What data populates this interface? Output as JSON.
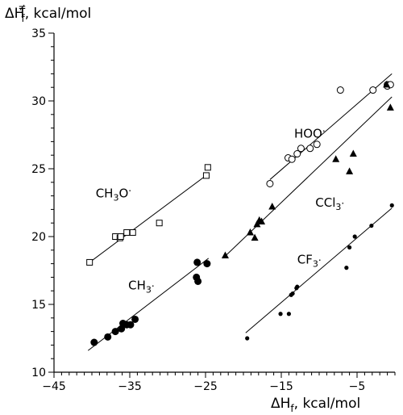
{
  "chart_data": {
    "type": "scatter",
    "title": "",
    "xlabel": {
      "main": "ΔH",
      "sub": "f",
      "unit": ", kcal/mol"
    },
    "ylabel": {
      "main": "ΔH",
      "sup": "≠",
      "sub": "f",
      "unit": ", kcal/mol"
    },
    "xlim": [
      -45,
      0
    ],
    "ylim": [
      10,
      35
    ],
    "xticks": [
      -45,
      -35,
      -25,
      -15,
      -5
    ],
    "yticks": [
      10,
      15,
      20,
      25,
      30,
      35
    ],
    "grid": false,
    "legend": "none",
    "series": [
      {
        "label": {
          "text": "CH3O·",
          "main": "CH",
          "sub": "3",
          "tail": "O",
          "dot": "·"
        },
        "label_at": [
          -39.5,
          22.9
        ],
        "marker": "open-square",
        "x": [
          -40.3,
          -36.9,
          -36.3,
          -36.2,
          -35.4,
          -34.6,
          -31.1,
          -24.9,
          -24.7
        ],
        "y": [
          18.1,
          20.0,
          19.9,
          20.0,
          20.3,
          20.3,
          21.0,
          24.5,
          25.1
        ],
        "fit": [
          [
            -40.3,
            18.1
          ],
          [
            -24.7,
            24.6
          ]
        ]
      },
      {
        "label": {
          "text": "CH3·",
          "main": "CH",
          "sub": "3",
          "tail": "",
          "dot": "·"
        },
        "label_at": [
          -35.2,
          16.1
        ],
        "marker": "filled-circle",
        "x": [
          -39.7,
          -37.9,
          -36.9,
          -36.1,
          -35.9,
          -35.4,
          -34.9,
          -34.3,
          -26.2,
          -26.0,
          -26.1,
          -24.8
        ],
        "y": [
          12.2,
          12.6,
          13.0,
          13.2,
          13.6,
          13.5,
          13.5,
          13.9,
          17.0,
          16.7,
          18.1,
          18.0
        ],
        "fit": [
          [
            -40.5,
            11.6
          ],
          [
            -24.6,
            18.4
          ]
        ]
      },
      {
        "label": {
          "text": "HOO·",
          "main": "HOO",
          "sub": "",
          "tail": "",
          "dot": "·"
        },
        "label_at": [
          -13.3,
          27.3
        ],
        "marker": "open-circle",
        "x": [
          -16.5,
          -14.1,
          -13.6,
          -12.9,
          -12.4,
          -11.2,
          -10.3,
          -7.2,
          -2.9,
          -1.0,
          -1.0,
          -0.6
        ],
        "y": [
          23.9,
          25.8,
          25.7,
          26.1,
          26.5,
          26.5,
          26.8,
          30.8,
          30.8,
          31.2,
          31.1,
          31.2
        ],
        "fit": [
          [
            -16.5,
            24.2
          ],
          [
            -0.4,
            32.0
          ]
        ]
      },
      {
        "label": {
          "text": "CCl3·",
          "main": "CCl",
          "sub": "3",
          "tail": "",
          "dot": "·"
        },
        "label_at": [
          -10.5,
          22.2
        ],
        "marker": "filled-triangle",
        "x": [
          -22.4,
          -19.1,
          -18.5,
          -18.2,
          -17.9,
          -17.6,
          -16.2,
          -7.8,
          -6.0,
          -5.5,
          -1.1,
          -0.6
        ],
        "y": [
          18.6,
          20.3,
          19.9,
          20.9,
          21.2,
          21.1,
          22.2,
          25.7,
          24.8,
          26.1,
          31.2,
          29.5
        ],
        "fit": [
          [
            -22.7,
            18.4
          ],
          [
            -0.4,
            30.3
          ]
        ]
      },
      {
        "label": {
          "text": "CF3·",
          "main": "CF",
          "sub": "3",
          "tail": "",
          "dot": "·"
        },
        "label_at": [
          -12.9,
          18.0
        ],
        "marker": "small-dot",
        "x": [
          -19.5,
          -15.1,
          -14.0,
          -13.7,
          -13.5,
          -13.0,
          -12.9,
          -6.4,
          -6.0,
          -5.3,
          -3.1,
          -0.4
        ],
        "y": [
          12.5,
          14.3,
          14.3,
          15.7,
          15.8,
          16.2,
          16.3,
          17.7,
          19.2,
          20.0,
          20.8,
          22.3
        ],
        "fit": [
          [
            -19.7,
            12.9
          ],
          [
            -0.4,
            22.1
          ]
        ]
      }
    ]
  }
}
